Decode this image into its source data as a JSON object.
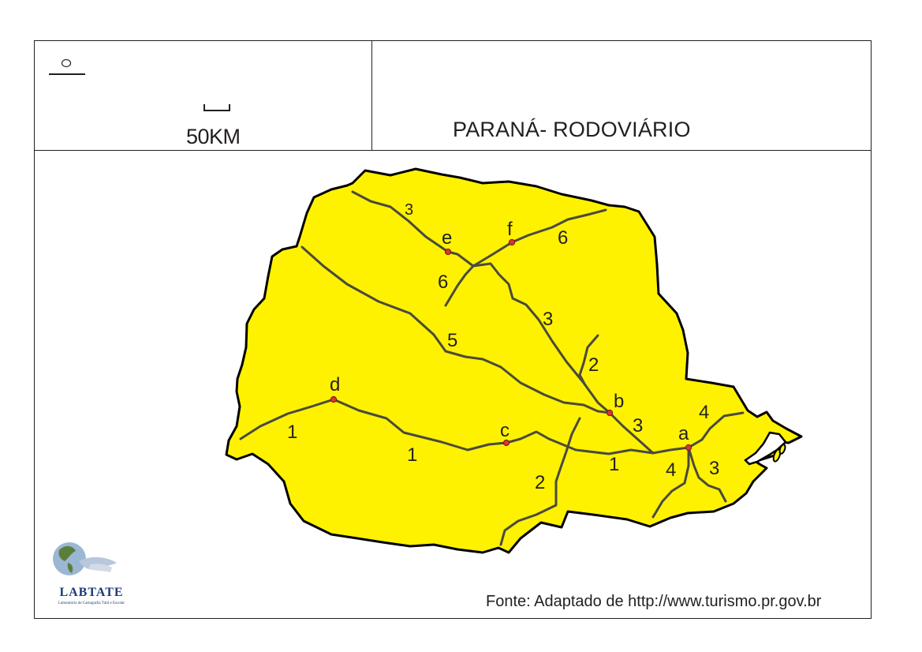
{
  "scale": {
    "label": "50KM"
  },
  "title": "PARANÁ- RODOVIÁRIO",
  "source": "Fonte: Adaptado de http://www.turismo.pr.gov.br",
  "logo": {
    "name": "LABTATE",
    "subtitle": "Laboratório de Cartografia Tátil e Escolar"
  },
  "colors": {
    "state_fill": "#fff200",
    "outline": "#000000",
    "road": "#4a4a3c",
    "city_dot": "#e0322e"
  },
  "cities": {
    "a": "a",
    "b": "b",
    "c": "c",
    "d": "d",
    "e": "e",
    "f": "f"
  },
  "road_labels": {
    "r1_west": "1",
    "r1_mid": "1",
    "r1_east": "1",
    "r2_north": "2",
    "r2_south": "2",
    "r3_north": "3",
    "r3_mid": "3",
    "r3_b": "3",
    "r3_east": "3",
    "r4_northeast": "4",
    "r4_south": "4",
    "r5": "5",
    "r6_east": "6",
    "r6_south": "6"
  }
}
